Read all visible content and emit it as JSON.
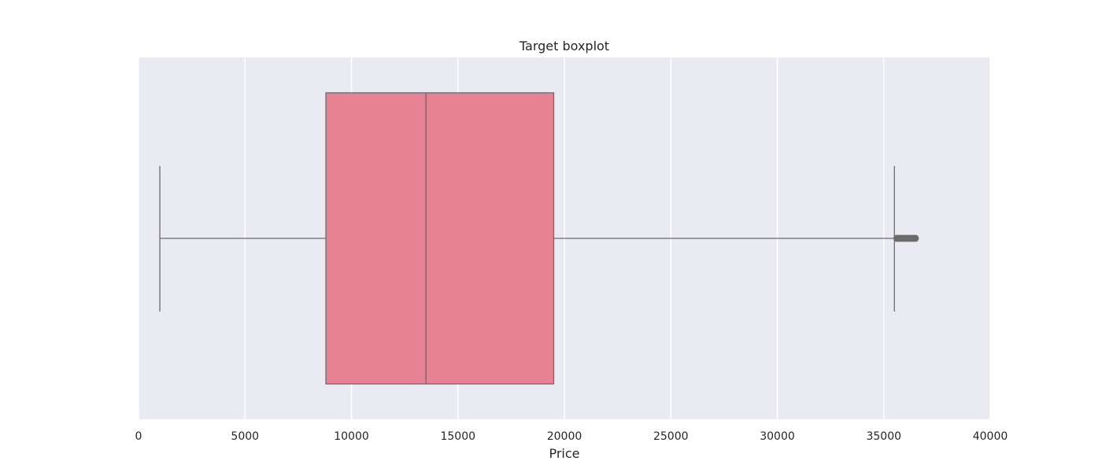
{
  "chart_data": {
    "type": "boxplot",
    "orientation": "horizontal",
    "title": "Target boxplot",
    "xlabel": "Price",
    "ylabel": "",
    "xlim": [
      0,
      40000
    ],
    "x_ticks": [
      0,
      5000,
      10000,
      15000,
      20000,
      25000,
      30000,
      35000,
      40000
    ],
    "x_tick_labels": [
      "0",
      "5000",
      "10000",
      "15000",
      "20000",
      "25000",
      "30000",
      "35000",
      "40000"
    ],
    "grid": true,
    "legend": "none",
    "box": {
      "whisker_low": 1000,
      "q1": 8800,
      "median": 13500,
      "q3": 19500,
      "whisker_high": 35500
    },
    "outliers": [
      35600,
      35700,
      35800,
      35900,
      36000,
      36100,
      36200,
      36300,
      36400,
      36500
    ],
    "colors": {
      "plot_background": "#eaeaf2",
      "grid": "#ffffff",
      "box_fill": "#e78194",
      "line": "#6b6b6b",
      "text": "#262626"
    }
  }
}
